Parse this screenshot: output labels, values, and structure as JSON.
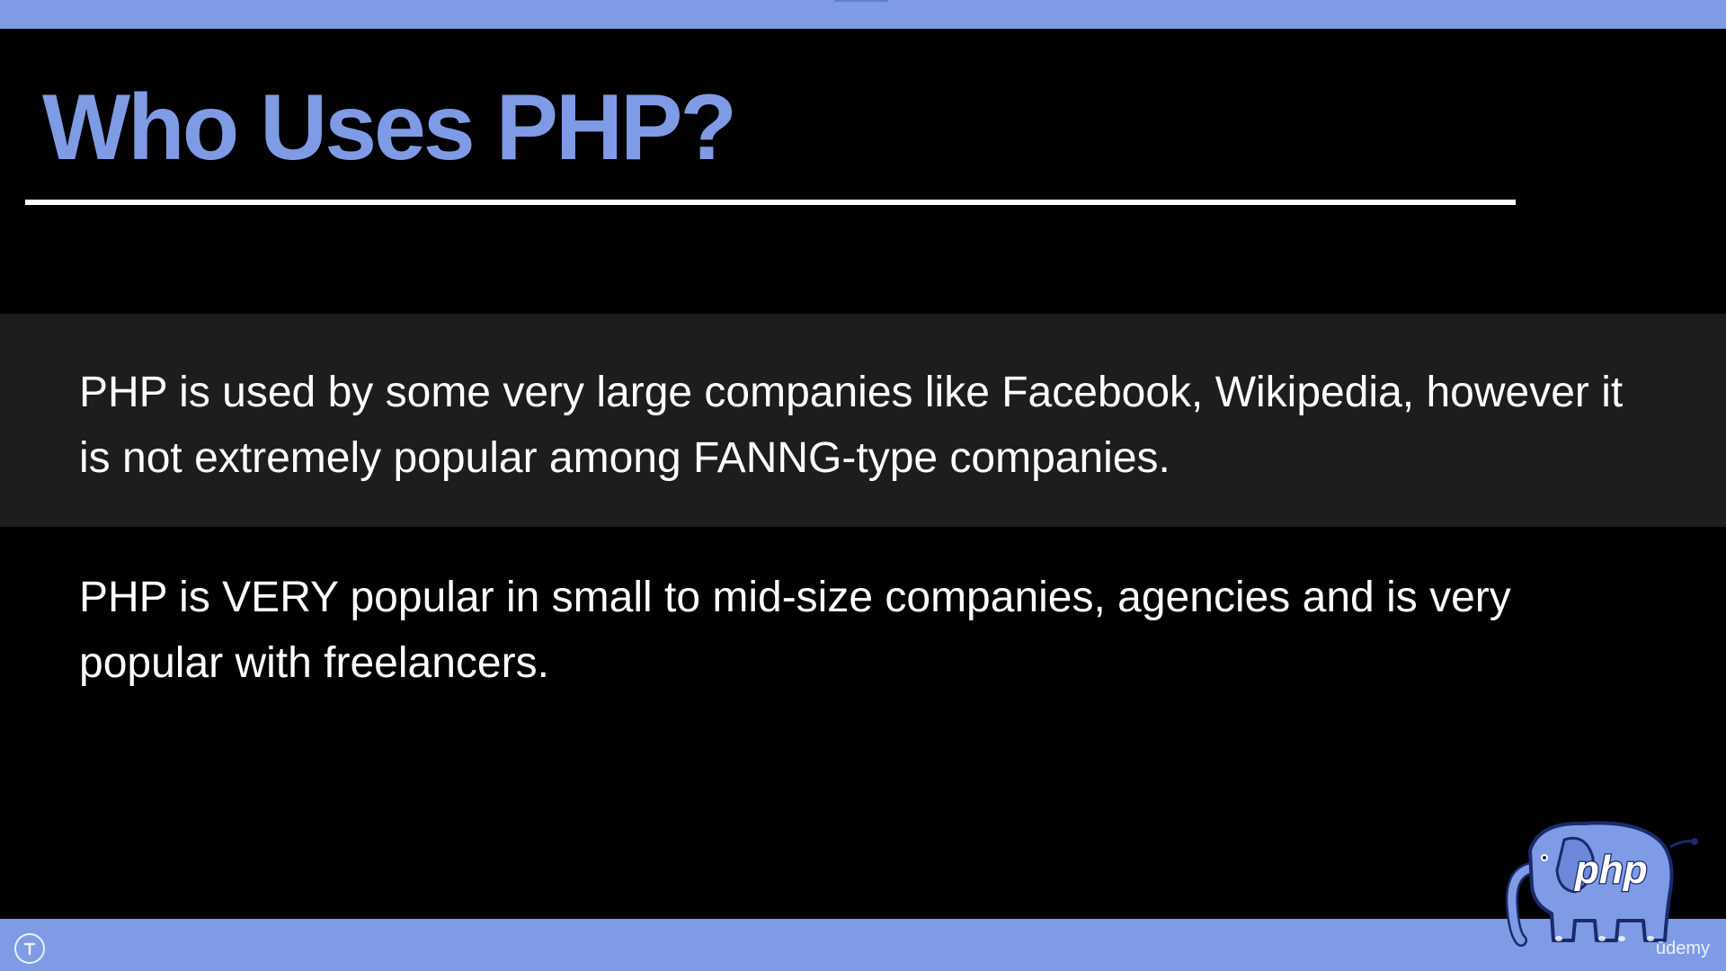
{
  "slide": {
    "title": "Who Uses PHP?",
    "paragraphs": [
      "PHP is used by some very large companies like Facebook, Wikipedia, however it is not extremely popular among FANNG-type companies.",
      "PHP is VERY popular in small to mid-size companies, agencies and is very popular with freelancers."
    ]
  },
  "branding": {
    "logo_text": "php",
    "logo_icon": "php-elephant-logo",
    "watermark": "ūdemy"
  },
  "controls": {
    "help_icon": "info-circle-icon"
  },
  "colors": {
    "accent": "#7f9be6",
    "background": "#000000",
    "band": "#1d1d1d",
    "text": "#ffffff"
  }
}
